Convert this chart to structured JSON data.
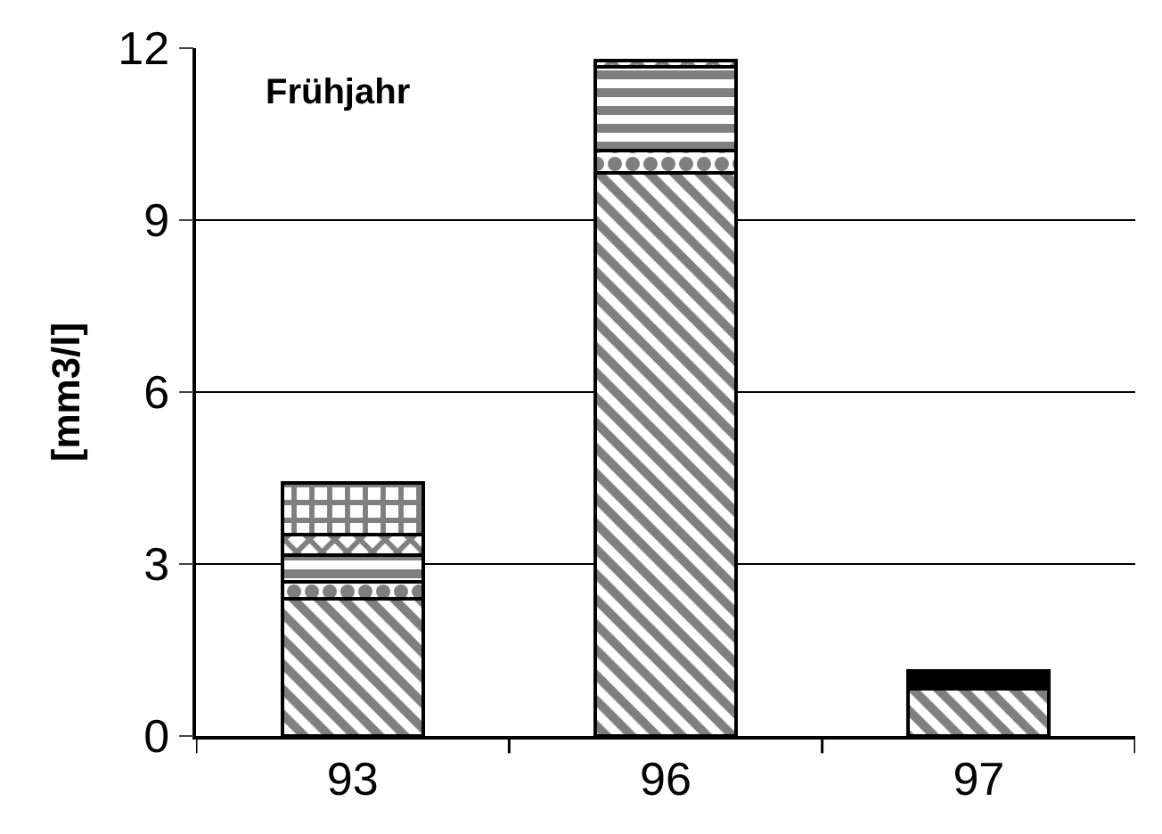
{
  "chart_data": {
    "type": "bar",
    "title": "Frühjahr",
    "ylabel": "[mm3/l]",
    "stacked": true,
    "categories": [
      "93",
      "96",
      "97"
    ],
    "series": [
      {
        "color": "#000000",
        "values": [
          2.39,
          9.83,
          0.82
        ]
      },
      {
        "color": "#000000",
        "values": [
          0.3,
          0.38,
          0
        ]
      },
      {
        "color": "#000000",
        "values": [
          0.46,
          1.47,
          0
        ]
      },
      {
        "color": "#000000",
        "values": [
          0.36,
          0.1,
          0
        ]
      },
      {
        "color": "#000000",
        "values": [
          0.9,
          0,
          0
        ]
      },
      {
        "color": "#000000",
        "values": [
          0,
          0,
          0.32
        ]
      }
    ],
    "ylim": [
      0,
      12
    ],
    "yticks": [
      0,
      3,
      6,
      9,
      12
    ],
    "grid": "y"
  }
}
